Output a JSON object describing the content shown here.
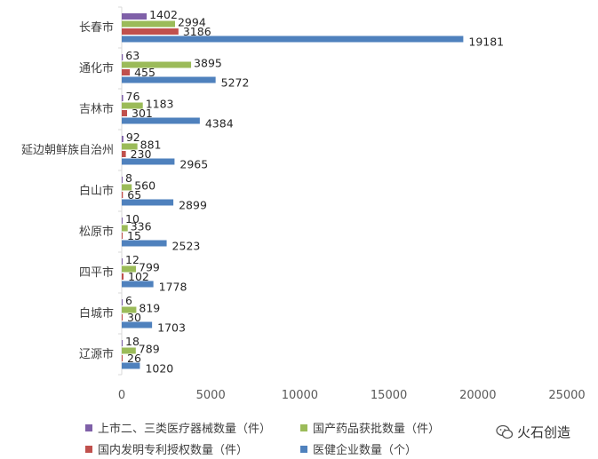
{
  "chart_data": {
    "type": "bar",
    "orientation": "horizontal",
    "categories": [
      "长春市",
      "通化市",
      "吉林市",
      "延边朝鲜族自治州",
      "白山市",
      "松原市",
      "四平市",
      "白城市",
      "辽源市"
    ],
    "series": [
      {
        "name": "上市二、三类医疗器械数量（件）",
        "color": "#7F60A8",
        "values": [
          1402,
          63,
          76,
          92,
          8,
          10,
          12,
          6,
          18
        ]
      },
      {
        "name": "国产药品获批数量（件）",
        "color": "#9BBB59",
        "values": [
          2994,
          3895,
          1183,
          881,
          560,
          336,
          799,
          819,
          789
        ]
      },
      {
        "name": "国内发明专利授权数量（件）",
        "color": "#C0504D",
        "values": [
          3186,
          455,
          301,
          230,
          65,
          15,
          102,
          30,
          26
        ]
      },
      {
        "name": "医健企业数量（个）",
        "color": "#4F81BD",
        "values": [
          19181,
          5272,
          4384,
          2965,
          2899,
          2523,
          1778,
          1703,
          1020
        ]
      }
    ],
    "xlim": [
      0,
      25000
    ],
    "xticks": [
      "0",
      "5000",
      "10000",
      "15000",
      "20000",
      "25000"
    ],
    "grid": false,
    "legend_position": "bottom",
    "title": "",
    "xlabel": "",
    "ylabel": ""
  },
  "legend": {
    "items": [
      {
        "label": "上市二、三类医疗器械数量（件）",
        "color": "#7F60A8"
      },
      {
        "label": "国产药品获批数量（件）",
        "color": "#9BBB59"
      },
      {
        "label": "国内发明专利授权数量（件）",
        "color": "#C0504D"
      },
      {
        "label": "医健企业数量（个）",
        "color": "#4F81BD"
      }
    ]
  },
  "watermark": {
    "text": "火石创造",
    "icon": "wechat-icon"
  }
}
